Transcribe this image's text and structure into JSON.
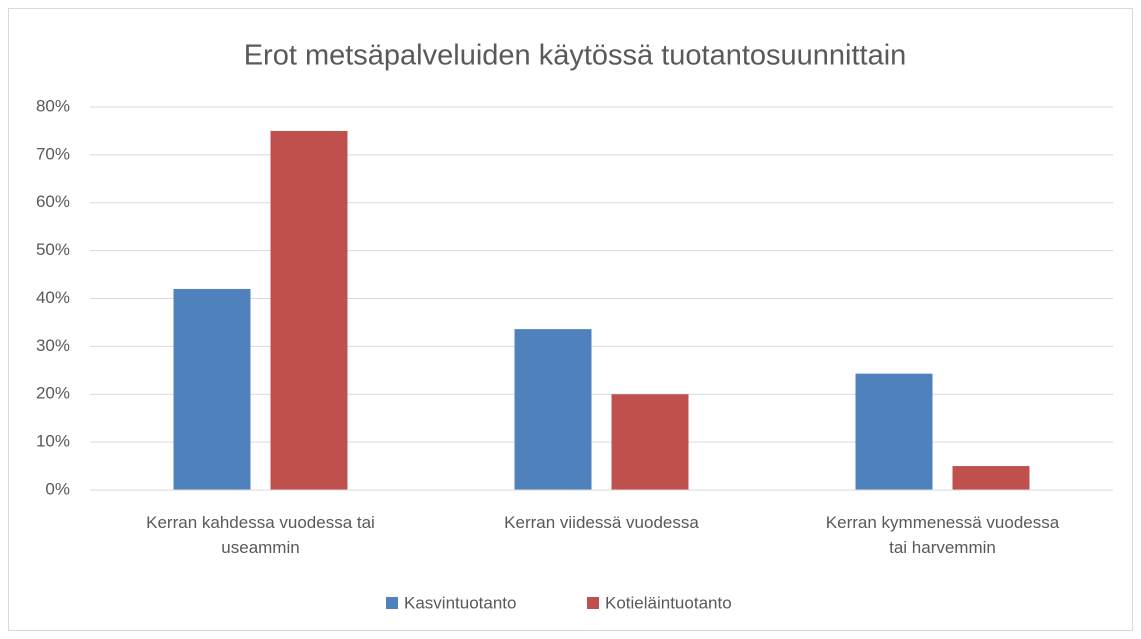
{
  "chart_data": {
    "type": "bar",
    "title": "Erot metsäpalveluiden käytössä tuotantosuunnittain",
    "categories": [
      "Kerran kahdessa vuodessa tai useammin",
      "Kerran viidessä vuodessa",
      "Kerran kymmenessä vuodessa tai harvemmin"
    ],
    "series": [
      {
        "name": "Kasvintuotanto",
        "color": "#4f81bd",
        "values": [
          42,
          33.6,
          24.3
        ]
      },
      {
        "name": "Kotieläintuotanto",
        "color": "#c0504d",
        "values": [
          75,
          20,
          5
        ]
      }
    ],
    "ylim": [
      0,
      80
    ],
    "yticks": [
      {
        "value": 0,
        "label": "0%"
      },
      {
        "value": 10,
        "label": "10%"
      },
      {
        "value": 20,
        "label": "20%"
      },
      {
        "value": 30,
        "label": "30%"
      },
      {
        "value": 40,
        "label": "40%"
      },
      {
        "value": 50,
        "label": "50%"
      },
      {
        "value": 60,
        "label": "60%"
      },
      {
        "value": 70,
        "label": "70%"
      },
      {
        "value": 80,
        "label": "80%"
      }
    ],
    "grid": true,
    "legend": "bottom"
  }
}
